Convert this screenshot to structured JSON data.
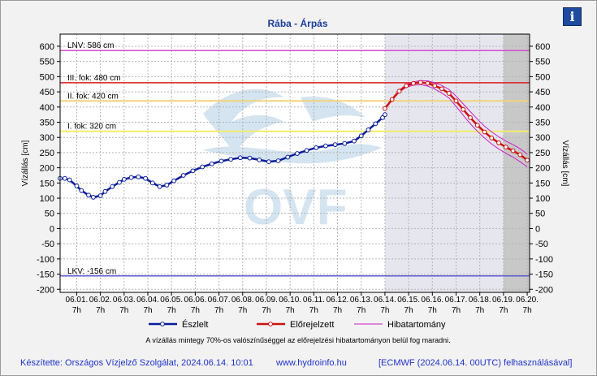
{
  "title": "Rába - Árpás",
  "info_label": "i",
  "watermark": "OVF",
  "footer": {
    "author": "Készítette: Országos Vízjelző Szolgálat, 2024.06.14. 10:01",
    "url": "www.hydroinfo.hu",
    "model": "[ECMWF (2024.06.14. 00UTC) felhasználásával]"
  },
  "colors": {
    "observed": "#0a1d9c",
    "forecast": "#cc1111",
    "band": "#c81ec8",
    "lnv": "#d04dd0",
    "level3": "#d81e1e",
    "level2": "#f0d37a",
    "level1": "#f2ec6a",
    "lkv": "#5a5acf",
    "forecast_area": "#e6e6ee",
    "late_area": "#c8c8c8"
  },
  "chart_data": {
    "type": "line",
    "title": "Rába - Árpás",
    "ylabel_left": "Vízállás [cm]",
    "ylabel_right": "Vízállás [cm]",
    "ylim": [
      -210,
      640
    ],
    "yticks": [
      -200,
      -150,
      -100,
      -50,
      0,
      50,
      100,
      150,
      200,
      250,
      300,
      350,
      400,
      450,
      500,
      550,
      600
    ],
    "xlim": [
      -0.7,
      19.1
    ],
    "xtick_dates": [
      "06.01.",
      "06.02.",
      "06.03.",
      "06.04.",
      "06.05.",
      "06.06.",
      "06.07.",
      "06.08.",
      "06.09.",
      "06.10.",
      "06.11.",
      "06.12.",
      "06.13.",
      "06.14.",
      "06.15.",
      "06.16.",
      "06.17.",
      "06.18.",
      "06.19.",
      "06.20."
    ],
    "xtick_hours": "7h",
    "forecast_start": 13.0,
    "late_forecast_start": 18.0,
    "thresholds": [
      {
        "label": "LNV: 586 cm",
        "value": 586,
        "color_key": "lnv"
      },
      {
        "label": "III. fok: 480 cm",
        "value": 480,
        "color_key": "level3"
      },
      {
        "label": "II. fok: 420 cm",
        "value": 420,
        "color_key": "level2"
      },
      {
        "label": "I. fok: 320 cm",
        "value": 320,
        "color_key": "level1"
      },
      {
        "label": "LKV: -156 cm",
        "value": -156,
        "color_key": "lkv"
      }
    ],
    "observed": [
      [
        -0.7,
        165
      ],
      [
        -0.5,
        165
      ],
      [
        -0.3,
        160
      ],
      [
        0.0,
        140
      ],
      [
        0.2,
        125
      ],
      [
        0.5,
        110
      ],
      [
        0.7,
        103
      ],
      [
        1.0,
        108
      ],
      [
        1.2,
        122
      ],
      [
        1.5,
        138
      ],
      [
        1.8,
        152
      ],
      [
        2.0,
        162
      ],
      [
        2.3,
        168
      ],
      [
        2.6,
        170
      ],
      [
        2.9,
        165
      ],
      [
        3.2,
        150
      ],
      [
        3.5,
        138
      ],
      [
        3.8,
        143
      ],
      [
        4.1,
        157
      ],
      [
        4.5,
        175
      ],
      [
        4.9,
        190
      ],
      [
        5.3,
        203
      ],
      [
        5.7,
        213
      ],
      [
        6.1,
        222
      ],
      [
        6.5,
        228
      ],
      [
        6.9,
        233
      ],
      [
        7.3,
        232
      ],
      [
        7.7,
        226
      ],
      [
        8.1,
        220
      ],
      [
        8.5,
        223
      ],
      [
        8.9,
        235
      ],
      [
        9.3,
        247
      ],
      [
        9.7,
        257
      ],
      [
        10.1,
        266
      ],
      [
        10.5,
        272
      ],
      [
        10.9,
        276
      ],
      [
        11.3,
        280
      ],
      [
        11.7,
        288
      ],
      [
        12.0,
        305
      ],
      [
        12.3,
        325
      ],
      [
        12.6,
        345
      ],
      [
        12.9,
        365
      ],
      [
        13.0,
        375
      ]
    ],
    "forecast": [
      [
        13.0,
        395
      ],
      [
        13.3,
        425
      ],
      [
        13.6,
        452
      ],
      [
        13.9,
        470
      ],
      [
        14.2,
        478
      ],
      [
        14.5,
        481
      ],
      [
        14.8,
        478
      ],
      [
        15.1,
        470
      ],
      [
        15.4,
        460
      ],
      [
        15.7,
        445
      ],
      [
        16.0,
        420
      ],
      [
        16.3,
        392
      ],
      [
        16.6,
        365
      ],
      [
        16.9,
        340
      ],
      [
        17.2,
        318
      ],
      [
        17.5,
        298
      ],
      [
        17.8,
        282
      ],
      [
        18.1,
        268
      ],
      [
        18.4,
        256
      ],
      [
        18.7,
        243
      ],
      [
        19.0,
        225
      ]
    ],
    "band_upper": [
      [
        13.0,
        395
      ],
      [
        13.3,
        426
      ],
      [
        13.6,
        455
      ],
      [
        13.9,
        474
      ],
      [
        14.2,
        483
      ],
      [
        14.5,
        487
      ],
      [
        14.8,
        486
      ],
      [
        15.1,
        480
      ],
      [
        15.4,
        471
      ],
      [
        15.7,
        458
      ],
      [
        16.0,
        436
      ],
      [
        16.3,
        410
      ],
      [
        16.6,
        385
      ],
      [
        16.9,
        360
      ],
      [
        17.2,
        337
      ],
      [
        17.5,
        318
      ],
      [
        17.8,
        302
      ],
      [
        18.1,
        288
      ],
      [
        18.4,
        276
      ],
      [
        18.7,
        263
      ],
      [
        19.0,
        245
      ]
    ],
    "band_lower": [
      [
        13.0,
        395
      ],
      [
        13.3,
        423
      ],
      [
        13.6,
        449
      ],
      [
        13.9,
        465
      ],
      [
        14.2,
        472
      ],
      [
        14.5,
        474
      ],
      [
        14.8,
        469
      ],
      [
        15.1,
        459
      ],
      [
        15.4,
        446
      ],
      [
        15.7,
        430
      ],
      [
        16.0,
        402
      ],
      [
        16.3,
        373
      ],
      [
        16.6,
        345
      ],
      [
        16.9,
        320
      ],
      [
        17.2,
        298
      ],
      [
        17.5,
        278
      ],
      [
        17.8,
        262
      ],
      [
        18.1,
        248
      ],
      [
        18.4,
        235
      ],
      [
        18.7,
        220
      ],
      [
        19.0,
        203
      ]
    ],
    "legend": {
      "position": "bottom",
      "observed": "Észlelt",
      "forecast": "Előrejelzett",
      "band": "Hibatartomány"
    },
    "note": "A vízállás mintegy 70%-os valószínűséggel az előrejelzési hibatartományon belül fog maradni."
  }
}
